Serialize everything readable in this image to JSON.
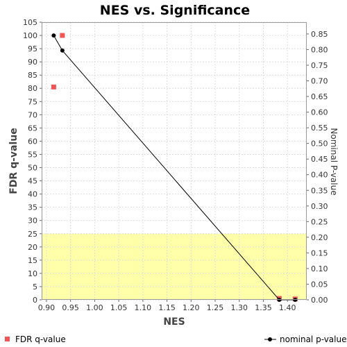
{
  "chart_data": {
    "type": "scatter",
    "title": "NES vs. Significance",
    "xlabel": "NES",
    "ylabel": "FDR q-value",
    "y2label": "Nominal P-value",
    "xlim": [
      0.89,
      1.44
    ],
    "ylim": [
      0,
      105
    ],
    "y2lim": [
      0,
      0.8875
    ],
    "x_ticks": [
      "0.90",
      "0.95",
      "1.00",
      "1.05",
      "1.10",
      "1.15",
      "1.20",
      "1.25",
      "1.30",
      "1.35",
      "1.40"
    ],
    "y_ticks": [
      "0",
      "5",
      "10",
      "15",
      "20",
      "25",
      "30",
      "35",
      "40",
      "45",
      "50",
      "55",
      "60",
      "65",
      "70",
      "75",
      "80",
      "85",
      "90",
      "95",
      "100",
      "105"
    ],
    "y2_ticks": [
      "0.00",
      "0.05",
      "0.10",
      "0.15",
      "0.20",
      "0.25",
      "0.30",
      "0.35",
      "0.40",
      "0.45",
      "0.50",
      "0.55",
      "0.60",
      "0.65",
      "0.70",
      "0.75",
      "0.80",
      "0.85"
    ],
    "grid": true,
    "highlight_band": {
      "from": 0,
      "to": 25,
      "color": "#ffffaa"
    },
    "series": [
      {
        "name": "FDR q-value",
        "axis": "left",
        "marker": "square",
        "color": "#f05555",
        "points": [
          {
            "x": 0.915,
            "y": 80.5
          },
          {
            "x": 0.933,
            "y": 100.0
          },
          {
            "x": 1.383,
            "y": 0.5
          },
          {
            "x": 1.416,
            "y": 0.3
          }
        ]
      },
      {
        "name": "nominal p-value",
        "axis": "right",
        "marker": "circle",
        "color": "#000000",
        "connected": true,
        "points": [
          {
            "x": 0.915,
            "y": 0.845
          },
          {
            "x": 0.933,
            "y": 0.797
          },
          {
            "x": 1.383,
            "y": 0.0
          },
          {
            "x": 1.416,
            "y": 0.0
          }
        ]
      }
    ],
    "legend": {
      "position": "bottom",
      "items": [
        "FDR q-value",
        "nominal p-value"
      ]
    }
  }
}
